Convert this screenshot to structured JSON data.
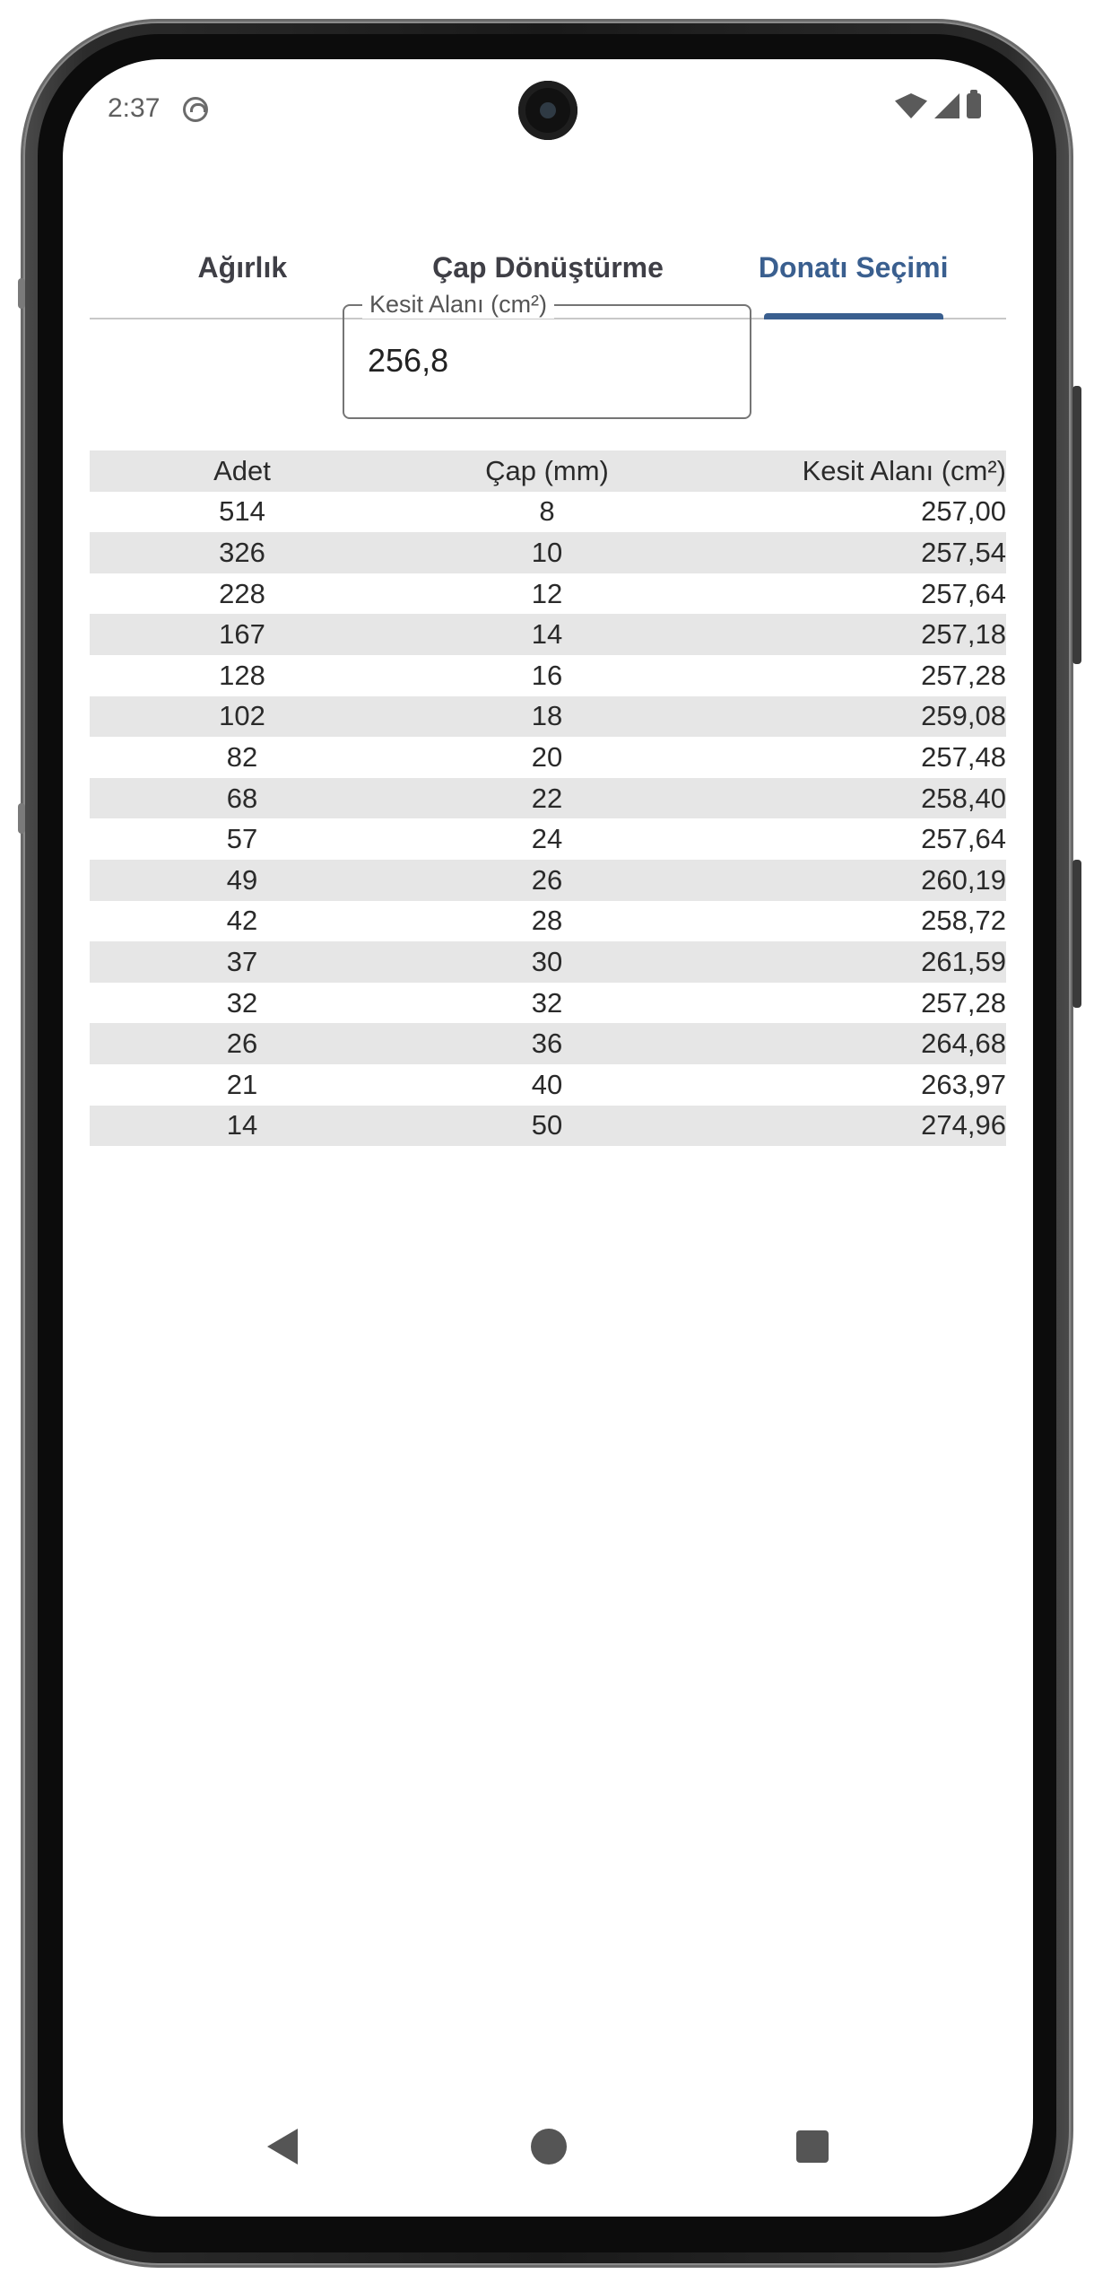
{
  "status_bar": {
    "time": "2:37"
  },
  "tabs": [
    {
      "label": "Ağırlık",
      "active": false
    },
    {
      "label": "Çap Dönüştürme",
      "active": false
    },
    {
      "label": "Donatı Seçimi",
      "active": true
    }
  ],
  "input": {
    "label": "Kesit Alanı (cm²)",
    "value": "256,8"
  },
  "table": {
    "headers": [
      "Adet",
      "Çap (mm)",
      "Kesit Alanı (cm²)"
    ],
    "rows": [
      [
        "514",
        "8",
        "257,00"
      ],
      [
        "326",
        "10",
        "257,54"
      ],
      [
        "228",
        "12",
        "257,64"
      ],
      [
        "167",
        "14",
        "257,18"
      ],
      [
        "128",
        "16",
        "257,28"
      ],
      [
        "102",
        "18",
        "259,08"
      ],
      [
        "82",
        "20",
        "257,48"
      ],
      [
        "68",
        "22",
        "258,40"
      ],
      [
        "57",
        "24",
        "257,64"
      ],
      [
        "49",
        "26",
        "260,19"
      ],
      [
        "42",
        "28",
        "258,72"
      ],
      [
        "37",
        "30",
        "261,59"
      ],
      [
        "32",
        "32",
        "257,28"
      ],
      [
        "26",
        "36",
        "264,68"
      ],
      [
        "21",
        "40",
        "263,97"
      ],
      [
        "14",
        "50",
        "274,96"
      ]
    ]
  },
  "colors": {
    "accent": "#3a5f8f",
    "row_shade": "#e6e6e6"
  }
}
